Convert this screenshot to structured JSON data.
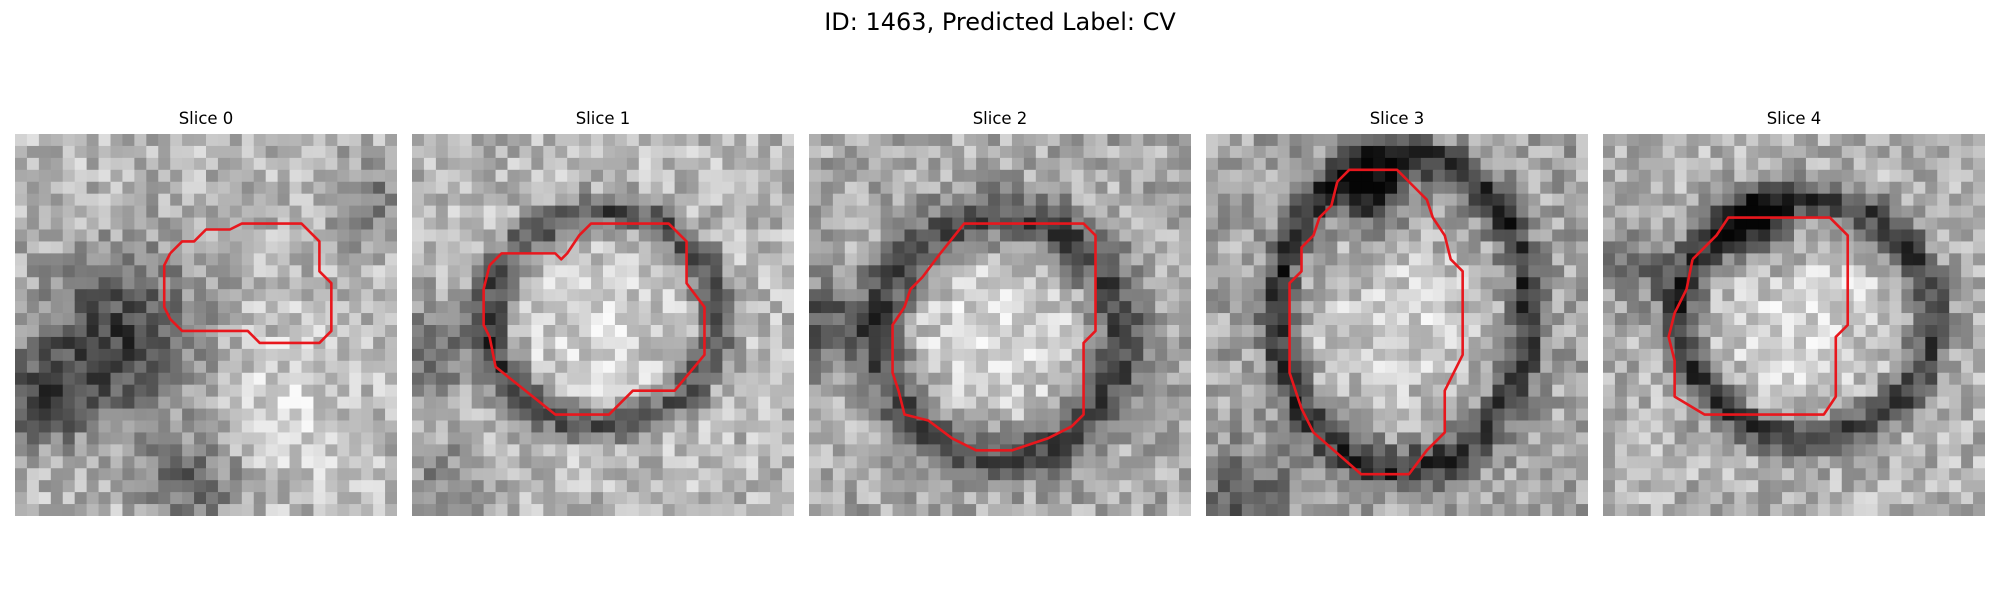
{
  "figure": {
    "title": "ID: 1463, Predicted Label: CV"
  },
  "panels": [
    {
      "title": "Slice 0"
    },
    {
      "title": "Slice 1"
    },
    {
      "title": "Slice 2"
    },
    {
      "title": "Slice 3"
    },
    {
      "title": "Slice 4"
    }
  ],
  "colors": {
    "contour": "#e8171d",
    "background": "#ffffff"
  }
}
